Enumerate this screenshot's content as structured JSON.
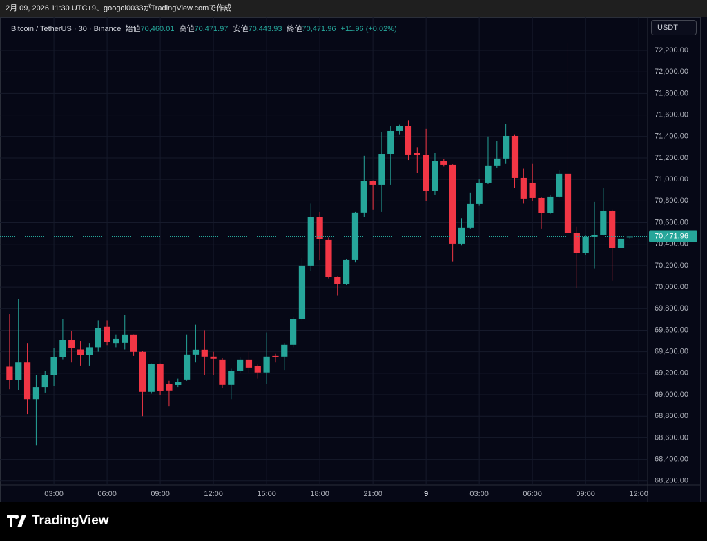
{
  "top_bar": "2月 09, 2026 11:30 UTC+9、googol0033がTradingView.comで作成",
  "header": {
    "symbol": "Bitcoin / TetherUS · 30 · Binance",
    "open_label": "始値",
    "open": "70,460.01",
    "high_label": "高値",
    "high": "70,471.97",
    "low_label": "安値",
    "low": "70,443.93",
    "close_label": "終値",
    "close": "70,471.96",
    "change": "+11.96 (+0.02%)"
  },
  "currency_button": "USDT",
  "logo": "TradingView",
  "chart_data": {
    "type": "candlestick",
    "up_color": "#26a69a",
    "down_color": "#f23645",
    "grid": true,
    "x": [
      0.5,
      1,
      1.5,
      2,
      2.5,
      3,
      3.5,
      4,
      4.5,
      5,
      5.5,
      6,
      6.5,
      7,
      7.5,
      8,
      8.5,
      9,
      9.5,
      10,
      10.5,
      11,
      11.5,
      12,
      12.5,
      13,
      13.5,
      14,
      14.5,
      15,
      15.5,
      16,
      16.5,
      17,
      17.5,
      18,
      18.5,
      19,
      19.5,
      20,
      20.5,
      21,
      21.5,
      22,
      22.5,
      23,
      23.5,
      24,
      24.5,
      25,
      25.5,
      26,
      26.5,
      27,
      27.5,
      28,
      28.5,
      29,
      29.5,
      30,
      30.5,
      31,
      31.5,
      32,
      32.5,
      33,
      33.5,
      34,
      34.5,
      35,
      35.5
    ],
    "open": [
      69260,
      69140,
      69300,
      68960,
      69070,
      69180,
      69350,
      69510,
      69420,
      69370,
      69440,
      69630,
      69480,
      69482,
      69559,
      69399,
      69027,
      69283,
      69100,
      69090,
      69142,
      69373,
      69418,
      69354,
      69328,
      69091,
      69219,
      69328,
      69264,
      69207,
      69360,
      69354,
      69463,
      69700,
      70200,
      70649,
      70437,
      70091,
      70027,
      70251,
      70694,
      70982,
      70950,
      71238,
      71450,
      71501,
      71245,
      71226,
      70892,
      71174,
      71136,
      70405,
      70553,
      70777,
      70969,
      71130,
      71194,
      71405,
      71014,
      70969,
      70828,
      70687,
      70841,
      71053,
      70501,
      70315,
      70469,
      70488,
      70706,
      70360,
      70460.01
    ],
    "high": [
      69750,
      69890,
      69480,
      69180,
      69220,
      69430,
      69700,
      69590,
      69500,
      69480,
      69690,
      69690,
      69560,
      69740,
      69560,
      69410,
      69290,
      69290,
      69130,
      69150,
      69560,
      69650,
      69600,
      69400,
      69340,
      69240,
      69350,
      69400,
      69280,
      69580,
      69380,
      69480,
      69720,
      70270,
      70780,
      70700,
      70460,
      70100,
      70260,
      70700,
      71220,
      70990,
      71440,
      71500,
      71510,
      71550,
      71300,
      71470,
      71250,
      71190,
      71140,
      70640,
      70880,
      71000,
      71400,
      71360,
      71520,
      71420,
      71100,
      71150,
      70840,
      70860,
      71090,
      72264,
      70560,
      70480,
      70790,
      70920,
      70720,
      70520,
      70471.97
    ],
    "low": [
      69050,
      69045,
      68820,
      68530,
      69020,
      69080,
      69330,
      69300,
      69270,
      69270,
      69400,
      69460,
      69440,
      69420,
      69360,
      68800,
      69010,
      69000,
      68890,
      69070,
      69130,
      69300,
      69180,
      69180,
      69060,
      68960,
      69200,
      69200,
      69150,
      69100,
      69300,
      69230,
      69440,
      69690,
      70150,
      70250,
      70080,
      69920,
      70020,
      70230,
      70650,
      70720,
      70700,
      70950,
      71420,
      71180,
      71060,
      70800,
      70860,
      71120,
      70240,
      70390,
      70540,
      70760,
      70960,
      71110,
      71150,
      70920,
      70780,
      70800,
      70540,
      70680,
      70830,
      70500,
      69989,
      70300,
      70170,
      70480,
      70060,
      70240,
      70443.93
    ],
    "close": [
      69140,
      69300,
      68960,
      69070,
      69180,
      69350,
      69510,
      69430,
      69370,
      69440,
      69620,
      69490,
      69520,
      69559,
      69399,
      69027,
      69283,
      69033,
      69040,
      69120,
      69373,
      69418,
      69354,
      69335,
      69091,
      69219,
      69328,
      69251,
      69207,
      69354,
      69350,
      69463,
      69700,
      70200,
      70649,
      70444,
      70091,
      70027,
      70251,
      70694,
      70982,
      70950,
      71238,
      71450,
      71501,
      71232,
      71226,
      70892,
      71174,
      71136,
      70405,
      70553,
      70777,
      70969,
      71130,
      71194,
      71405,
      71014,
      70822,
      70828,
      70687,
      70841,
      71053,
      70501,
      70315,
      70469,
      70488,
      70706,
      70360,
      70450,
      70471.96
    ],
    "xlim": [
      0.27,
      36.5
    ],
    "xticks": [
      {
        "value": 3,
        "label": "03:00"
      },
      {
        "value": 6,
        "label": "06:00"
      },
      {
        "value": 9,
        "label": "09:00"
      },
      {
        "value": 12,
        "label": "12:00"
      },
      {
        "value": 15,
        "label": "15:00"
      },
      {
        "value": 18,
        "label": "18:00"
      },
      {
        "value": 21,
        "label": "21:00"
      },
      {
        "value": 24,
        "label": "9"
      },
      {
        "value": 27,
        "label": "03:00"
      },
      {
        "value": 30,
        "label": "06:00"
      },
      {
        "value": 33,
        "label": "09:00"
      },
      {
        "value": 36,
        "label": "12:00"
      }
    ],
    "ylim": [
      68160,
      72495
    ],
    "yticks": [
      {
        "value": 68200,
        "label": "68,200.00"
      },
      {
        "value": 68400,
        "label": "68,400.00"
      },
      {
        "value": 68600,
        "label": "68,600.00"
      },
      {
        "value": 68800,
        "label": "68,800.00"
      },
      {
        "value": 69000,
        "label": "69,000.00"
      },
      {
        "value": 69200,
        "label": "69,200.00"
      },
      {
        "value": 69400,
        "label": "69,400.00"
      },
      {
        "value": 69600,
        "label": "69,600.00"
      },
      {
        "value": 69800,
        "label": "69,800.00"
      },
      {
        "value": 70000,
        "label": "70,000.00"
      },
      {
        "value": 70200,
        "label": "70,200.00"
      },
      {
        "value": 70400,
        "label": "70,400.00"
      },
      {
        "value": 70600,
        "label": "70,600.00"
      },
      {
        "value": 70800,
        "label": "70,800.00"
      },
      {
        "value": 71000,
        "label": "71,000.00"
      },
      {
        "value": 71200,
        "label": "71,200.00"
      },
      {
        "value": 71400,
        "label": "71,400.00"
      },
      {
        "value": 71600,
        "label": "71,600.00"
      },
      {
        "value": 71800,
        "label": "71,800.00"
      },
      {
        "value": 72000,
        "label": "72,000.00"
      },
      {
        "value": 72200,
        "label": "72,200.00"
      }
    ],
    "last_price": {
      "value": 70471.96,
      "label": "70,471.96"
    }
  }
}
